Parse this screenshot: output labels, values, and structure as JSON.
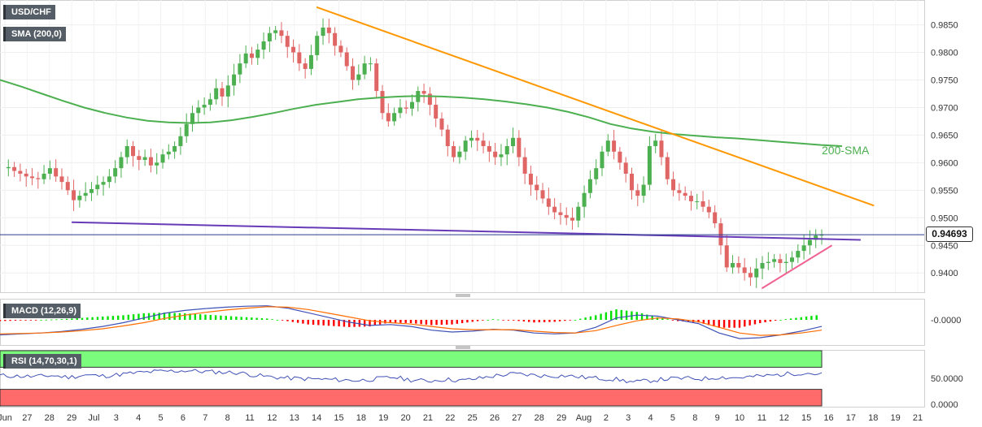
{
  "header": {
    "symbol": "USD/CHF",
    "sma_indicator": "SMA (200,0)",
    "macd_indicator": "MACD (12,26,9)",
    "rsi_indicator": "RSI (14,70,30,1)"
  },
  "annotations": {
    "sma_label": "200-SMA",
    "last_price": "0.94693"
  },
  "colors": {
    "bull_candle": "#4caf50",
    "bear_candle": "#e06666",
    "sma_line": "#4caf50",
    "resistance_line": "#ff9800",
    "support_line": "#673ab7",
    "uptrend_line": "#f06292",
    "macd_line": "#3f51b5",
    "signal_line": "#ff6d00",
    "hist_pos": "#00e000",
    "hist_neg": "#ff0000",
    "rsi_line": "#3f51b5",
    "rsi_overbought": "#7cfc7c",
    "rsi_oversold": "#ff6b6b"
  },
  "chart_data": {
    "type": "candlestick",
    "timeframe": "4H",
    "x_ticks": [
      "Jun",
      "27",
      "28",
      "29",
      "Jul",
      "3",
      "4",
      "5",
      "6",
      "7",
      "8",
      "11",
      "12",
      "13",
      "14",
      "15",
      "18",
      "19",
      "20",
      "21",
      "22",
      "25",
      "26",
      "27",
      "28",
      "29",
      "Aug",
      "2",
      "3",
      "4",
      "5",
      "8",
      "9",
      "10",
      "11",
      "12",
      "15",
      "16",
      "17",
      "18",
      "19",
      "21"
    ],
    "price_axis": {
      "ticks": [
        "0.9850",
        "0.9800",
        "0.9750",
        "0.9700",
        "0.9650",
        "0.9600",
        "0.9550",
        "0.9500",
        "0.9450",
        "0.9400"
      ],
      "ylim": [
        0.9365,
        0.9895
      ]
    },
    "macd_axis": {
      "ticks": [
        "-0.0000"
      ]
    },
    "rsi_axis": {
      "ticks": [
        "50.0000",
        "0.0000"
      ],
      "overbought": 70,
      "oversold": 30
    },
    "price_path": [
      0.959,
      0.9592,
      0.9585,
      0.958,
      0.9575,
      0.9572,
      0.957,
      0.958,
      0.959,
      0.9575,
      0.9565,
      0.955,
      0.9532,
      0.954,
      0.9545,
      0.9552,
      0.956,
      0.9565,
      0.9575,
      0.959,
      0.961,
      0.963,
      0.9612,
      0.9605,
      0.961,
      0.9595,
      0.96,
      0.9615,
      0.962,
      0.963,
      0.9648,
      0.967,
      0.969,
      0.97,
      0.9705,
      0.9715,
      0.9735,
      0.972,
      0.974,
      0.976,
      0.978,
      0.9798,
      0.979,
      0.9805,
      0.982,
      0.9835,
      0.984,
      0.983,
      0.981,
      0.98,
      0.978,
      0.977,
      0.9795,
      0.983,
      0.9845,
      0.9835,
      0.9812,
      0.98,
      0.9775,
      0.975,
      0.976,
      0.978,
      0.978,
      0.973,
      0.969,
      0.9675,
      0.969,
      0.97,
      0.9698,
      0.971,
      0.973,
      0.9725,
      0.9705,
      0.968,
      0.966,
      0.963,
      0.961,
      0.962,
      0.964,
      0.9645,
      0.964,
      0.963,
      0.962,
      0.961,
      0.9615,
      0.963,
      0.9645,
      0.961,
      0.958,
      0.956,
      0.955,
      0.9535,
      0.952,
      0.951,
      0.9505,
      0.95,
      0.9495,
      0.952,
      0.9545,
      0.957,
      0.959,
      0.962,
      0.964,
      0.962,
      0.96,
      0.958,
      0.955,
      0.954,
      0.956,
      0.963,
      0.964,
      0.961,
      0.957,
      0.955,
      0.9545,
      0.954,
      0.953,
      0.953,
      0.952,
      0.951,
      0.949,
      0.945,
      0.941,
      0.9418,
      0.941,
      0.94,
      0.9392,
      0.9408,
      0.9418,
      0.942,
      0.9425,
      0.9418,
      0.942,
      0.9428,
      0.944,
      0.945,
      0.946,
      0.9468,
      0.94693
    ],
    "sma200_path": [
      0.975,
      0.9738,
      0.9725,
      0.9712,
      0.97,
      0.969,
      0.9682,
      0.9676,
      0.9673,
      0.9672,
      0.9673,
      0.9677,
      0.9683,
      0.969,
      0.9698,
      0.9705,
      0.971,
      0.9715,
      0.9718,
      0.972,
      0.9721,
      0.972,
      0.9718,
      0.9715,
      0.9711,
      0.9706,
      0.97,
      0.9692,
      0.9682,
      0.967,
      0.9662,
      0.9656,
      0.9652,
      0.9649,
      0.9646,
      0.9644,
      0.9641,
      0.9638,
      0.9635,
      0.9632,
      0.963
    ],
    "trend_lines": [
      {
        "name": "resistance",
        "from": [
          "Jul 14",
          0.9882
        ],
        "to": [
          "Aug 18",
          0.9522
        ]
      },
      {
        "name": "support",
        "from": [
          "Jun 29",
          0.9492
        ],
        "to": [
          "Aug 17",
          0.946
        ]
      },
      {
        "name": "uptrend",
        "from": [
          "Aug 11",
          0.9372
        ],
        "to": [
          "Aug 16",
          0.945
        ]
      }
    ],
    "last_price": 0.94693,
    "macd_path": [
      -0.0032,
      -0.003,
      -0.0028,
      -0.0025,
      -0.002,
      -0.0014,
      -0.0006,
      0.0004,
      0.0014,
      0.002,
      0.0024,
      0.0027,
      0.0029,
      0.003,
      0.0025,
      0.0015,
      0.0005,
      -0.0005,
      -0.0012,
      -0.001,
      -0.0014,
      -0.0022,
      -0.0026,
      -0.0024,
      -0.002,
      -0.0022,
      -0.0028,
      -0.003,
      -0.0028,
      -0.0016,
      0.0004,
      0.001,
      0.0008,
      0.0,
      -0.0008,
      -0.0028,
      -0.004,
      -0.0038,
      -0.0032,
      -0.0024,
      -0.0014
    ],
    "signal_path": [
      -0.003,
      -0.0029,
      -0.0028,
      -0.0026,
      -0.0023,
      -0.0019,
      -0.0013,
      -0.0006,
      0.0003,
      0.001,
      0.0016,
      0.0021,
      0.0025,
      0.0028,
      0.0027,
      0.0022,
      0.0014,
      0.0006,
      -0.0002,
      -0.0006,
      -0.0009,
      -0.0014,
      -0.0019,
      -0.0021,
      -0.0021,
      -0.0021,
      -0.0024,
      -0.0027,
      -0.0028,
      -0.0023,
      -0.0012,
      -0.0002,
      0.0004,
      0.0002,
      -0.0004,
      -0.0016,
      -0.0028,
      -0.0033,
      -0.0032,
      -0.0028,
      -0.0022
    ],
    "rsi_path": [
      55,
      54,
      53,
      55,
      52,
      56,
      54,
      57,
      60,
      62,
      63,
      64,
      62,
      61,
      60,
      55,
      52,
      50,
      49,
      48,
      47,
      46,
      49,
      52,
      47,
      45,
      48,
      46,
      50,
      55,
      58,
      56,
      54,
      55,
      52,
      50,
      48,
      43,
      46,
      49,
      50,
      49,
      52,
      51,
      53,
      55,
      58,
      60,
      57
    ]
  }
}
